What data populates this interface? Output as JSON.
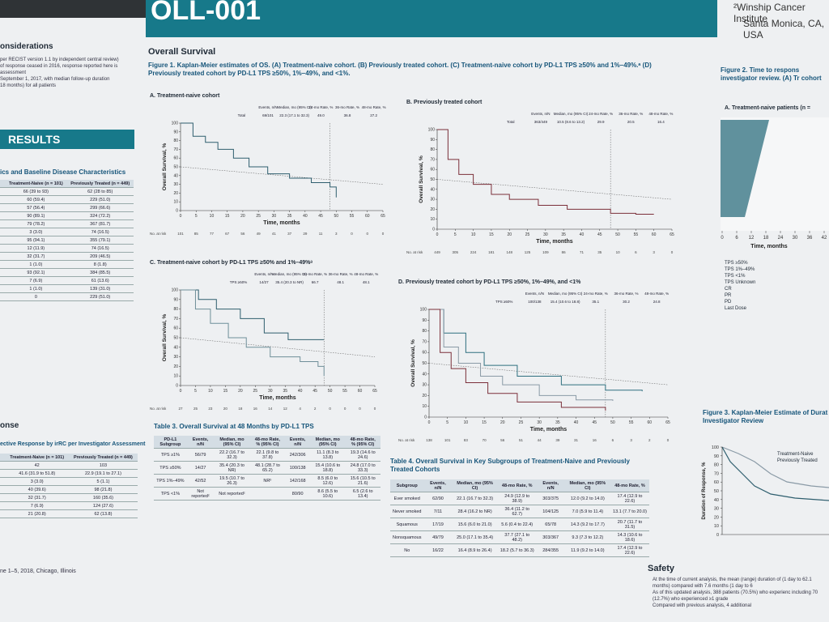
{
  "header": {
    "banner": "OLL-001",
    "affiliation": "²Winship Cancer Institute",
    "location": "Santa Monica, CA, USA"
  },
  "left": {
    "considerations_title": "onsiderations",
    "considerations_lines": [
      "per RECIST version 1.1 by independent central review)",
      "of response ceased in 2016, response reported here is",
      "assessment",
      "September 1, 2017, with median follow-up duration",
      "18 months) for all patients"
    ],
    "results_title": "RESULTS",
    "table1_title": "ics and Baseline Disease Characteristics",
    "table1_headers": [
      "Treatment-Naive (n = 101)",
      "Previously Treated (n = 449)"
    ],
    "table1_rows": [
      [
        "66 (39 to 93)",
        "62 (28 to 85)"
      ],
      [
        "60 (59.4)",
        "229 (51.0)"
      ],
      [
        "57 (56.4)",
        "299 (66.6)"
      ],
      [
        "90 (89.1)",
        "324 (72.2)"
      ],
      [
        "79 (78.2)",
        "367 (81.7)"
      ],
      [
        "3 (3.0)",
        "74 (16.5)"
      ],
      [
        "95 (94.1)",
        "355 (79.1)"
      ],
      [
        "12 (11.9)",
        "74 (16.5)"
      ],
      [
        "32 (31.7)",
        "209 (46.5)"
      ],
      [
        "1 (1.0)",
        "8 (1.8)"
      ],
      [
        "93 (92.1)",
        "384 (85.5)"
      ],
      [
        "7 (6.9)",
        "61 (13.6)"
      ],
      [
        "1 (1.0)",
        "139 (31.0)"
      ],
      [
        "0",
        "229 (51.0)"
      ]
    ],
    "table2_title": "ective Response by irRC per Investigator Assessment",
    "table2_headers": [
      "Treatment-Naive (n = 101)",
      "Previously Treated (n = 449)"
    ],
    "table2_rows": [
      [
        "42",
        "103"
      ],
      [
        "41.6 (31.9 to 51.8)",
        "22.9 (19.1 to 27.1)"
      ],
      [
        "3 (3.0)",
        "5 (1.1)"
      ],
      [
        "40 (39.6)",
        "98 (21.8)"
      ],
      [
        "32 (31.7)",
        "160 (35.6)"
      ],
      [
        "7 (6.9)",
        "124 (27.6)"
      ],
      [
        "21 (20.8)",
        "62 (13.8)"
      ]
    ],
    "response_title": "onse",
    "footer": "ne 1–5, 2018, Chicago, Illinois"
  },
  "center": {
    "section_title": "Overall Survival",
    "figure1_caption": "Figure 1. Kaplan-Meier estimates of OS. (A) Treatment-naive cohort. (B) Previously treated cohort. (C) Treatment-naive cohort by PD-L1 TPS ≥50% and 1%–49%.ᵃ (D) Previously treated cohort by PD-L1 TPS ≥50%, 1%–49%, and <1%.",
    "y_label": "Overall Survival, %",
    "x_label": "Time, months",
    "at_risk_label": "No. at risk",
    "summary_headers": [
      "Events, n/N",
      "Median, mo (95% CI)",
      "24-mo Rate, %",
      "36-mo Rate, %",
      "48-mo Rate, %"
    ],
    "panels": [
      {
        "title": "A. Treatment-naive cohort",
        "summary": [
          "Total",
          "69/101",
          "22.3 (17.1 to 32.3)",
          "49.0",
          "36.8",
          "27.2"
        ],
        "yticks": [
          0,
          10,
          20,
          30,
          40,
          50,
          60,
          70,
          80,
          90,
          100
        ],
        "xticks": [
          0,
          5,
          10,
          15,
          20,
          25,
          30,
          35,
          40,
          45,
          50,
          55,
          60,
          65
        ],
        "at_risk": [
          101,
          85,
          77,
          67,
          56,
          49,
          41,
          37,
          29,
          11,
          3,
          0,
          0,
          0
        ]
      },
      {
        "title": "B. Previously treated cohort",
        "summary": [
          "Total",
          "363/449",
          "10.5 (8.6 to 13.2)",
          "29.9",
          "20.5",
          "16.4"
        ],
        "yticks": [
          0,
          10,
          20,
          30,
          40,
          50,
          60,
          70,
          80,
          90,
          100
        ],
        "xticks": [
          0,
          5,
          10,
          15,
          20,
          25,
          30,
          35,
          40,
          45,
          50,
          55,
          60,
          65
        ],
        "at_risk": [
          449,
          305,
          224,
          181,
          148,
          125,
          109,
          86,
          71,
          35,
          10,
          6,
          3,
          0
        ]
      },
      {
        "title": "C. Treatment-naive cohort by PD-L1 TPS ≥50% and 1%–49%ᵃ",
        "summary": [
          "TPS ≥50%",
          "14/27",
          "35.4 (20.3 to NR)",
          "66.7",
          "48.1",
          "48.1"
        ],
        "yticks": [
          0,
          10,
          20,
          30,
          40,
          50,
          60,
          70,
          80,
          90,
          100
        ],
        "xticks": [
          0,
          5,
          10,
          15,
          20,
          25,
          30,
          35,
          40,
          45,
          50,
          55,
          60,
          65
        ],
        "at_risk": [
          27,
          25,
          23,
          20,
          18,
          16,
          14,
          12,
          4,
          2,
          0,
          0,
          0,
          0
        ]
      },
      {
        "title": "D. Previously treated cohort by PD-L1 TPS ≥50%, 1%–49%, and <1%",
        "summary": [
          "TPS ≥50%",
          "100/138",
          "15.4 (10.6 to 18.8)",
          "35.1",
          "30.2",
          "24.8"
        ],
        "yticks": [
          0,
          10,
          20,
          30,
          40,
          50,
          60,
          70,
          80,
          90,
          100
        ],
        "xticks": [
          0,
          5,
          10,
          15,
          20,
          25,
          30,
          35,
          40,
          45,
          50,
          55,
          60,
          65
        ],
        "at_risk": [
          138,
          101,
          83,
          70,
          56,
          51,
          44,
          39,
          31,
          16,
          6,
          3,
          2,
          0
        ]
      }
    ],
    "table3_title": "Table 3. Overall Survival at 48 Months by PD-L1 TPS",
    "table3_headers": [
      "PD-L1 Subgroup",
      "Events, n/N",
      "Median, mo (95% CI)",
      "48-mo Rate, % (95% CI)",
      "Events, n/N",
      "Median, mo (95% CI)",
      "48-mo Rate, % (95% CI)"
    ],
    "table3_rows": [
      [
        "TPS ≥1%",
        "56/79",
        "22.2 (16.7 to 32.3)",
        "22.1 (9.8 to 37.8)",
        "242/306",
        "11.1 (8.3 to 13.8)",
        "19.3 (14.6 to 24.6)"
      ],
      [
        "TPS ≥50%",
        "14/27",
        "35.4 (20.3 to NR)",
        "48.1 (28.7 to 65.2)",
        "100/138",
        "15.4 (10.6 to 18.8)",
        "24.8 (17.0 to 33.3)"
      ],
      [
        "TPS 1%–49%",
        "42/52",
        "19.5 (10.7 to 26.3)",
        "NRᵇ",
        "142/168",
        "8.5 (6.0 to 12.6)",
        "15.6 (10.5 to 21.6)"
      ],
      [
        "TPS <1%",
        "Not reportedᶜ",
        "Not reportedᶜ",
        "",
        "80/90",
        "8.6 (5.5 to 10.6)",
        "6.5 (2.6 to 13.4)"
      ]
    ],
    "table4_title": "Table 4. Overall Survival in Key Subgroups of Treatment-Naive and Previously Treated Cohorts",
    "table4_headers": [
      "Subgroup",
      "Events, n/N",
      "Median, mo (95% CI)",
      "48-mo Rate, %",
      "Events, n/N",
      "Median, mo (95% CI)",
      "48-mo Rate, %"
    ],
    "table4_rows": [
      [
        "Ever smoked",
        "62/90",
        "22.1 (16.7 to 32.3)",
        "24.9 (12.9 to 38.9)",
        "303/375",
        "12.0 (9.2 to 14.0)",
        "17.4 (12.9 to 22.6)"
      ],
      [
        "Never smoked",
        "7/11",
        "28.4 (16.2 to NR)",
        "36.4 (11.2 to 62.7)",
        "104/125",
        "7.0 (5.9 to 11.4)",
        "13.1 (7.7 to 20.0)"
      ],
      [
        "Squamous",
        "17/19",
        "15.6 (6.0 to 21.0)",
        "5.6 (0.4 to 22.4)",
        "65/78",
        "14.3 (9.2 to 17.7)",
        "20.7 (11.7 to 31.5)"
      ],
      [
        "Nonsquamous",
        "49/79",
        "25.0 (17.1 to 35.4)",
        "37.7 (27.1 to 48.2)",
        "303/367",
        "9.3 (7.3 to 12.2)",
        "14.3 (10.6 to 18.6)"
      ],
      [
        "No",
        "16/22",
        "16.4 (8.9 to 26.4)",
        "18.2 (5.7 to 36.3)",
        "284/355",
        "11.9 (9.2 to 14.0)",
        "17.4 (12.9 to 22.6)"
      ]
    ]
  },
  "right": {
    "figure2_title": "Figure 2. Time to respons investigator review. (A) Tr cohort",
    "figure2_panel": "A. Treatment-naive patients (n =",
    "figure2_xticks": [
      0,
      6,
      12,
      18,
      24,
      30,
      36,
      42
    ],
    "figure2_x_label": "Time, months",
    "legend": [
      "TPS ≥50%",
      "TPS 1%–49%",
      "TPS <1%",
      "TPS Unknown",
      "CR",
      "PR",
      "PD",
      "Last Dose"
    ],
    "figure3_title": "Figure 3. Kaplan-Meier Estimate of Durat Investigator Review",
    "figure3_yticks": [
      0,
      10,
      20,
      30,
      40,
      50,
      60,
      70,
      80,
      90,
      100
    ],
    "figure3_legend": [
      "Treatment-Naive",
      "Previously Treated"
    ],
    "figure3_y_label": "Duration of Response, %",
    "safety_title": "Safety",
    "safety_lines": [
      "At the time of current analysis, the mean (range) duration of (1 day to 62.1 months) compared with 7.6 months (1 day to 6",
      "As of this updated analysis, 388 patients (70.5%) who experienc including 70 (12.7%) who experienced ≥1 grade",
      "Compared with previous analysis, 4 additional"
    ]
  }
}
